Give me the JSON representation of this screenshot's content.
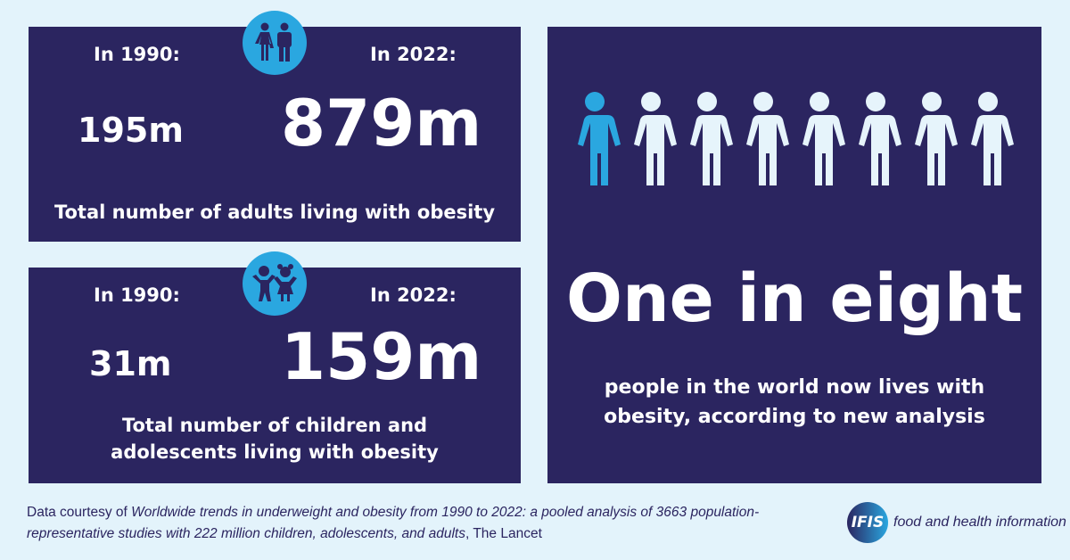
{
  "adults": {
    "label_1990": "In 1990:",
    "label_2022": "In 2022:",
    "value_1990": "195m",
    "value_2022": "879m",
    "caption": "Total number of adults living with obesity",
    "icon": "adults-icon"
  },
  "children": {
    "label_1990": "In 1990:",
    "label_2022": "In 2022:",
    "value_1990": "31m",
    "value_2022": "159m",
    "caption_line1": "Total number of children and",
    "caption_line2": "adolescents living with obesity",
    "icon": "children-icon"
  },
  "headline": {
    "title": "One in eight",
    "line1": "people in the world now lives with",
    "line2": "obesity, according to new analysis",
    "highlighted_count": 1,
    "total_count": 8
  },
  "footer": {
    "prefix": "Data courtesy of ",
    "title": "Worldwide trends in underweight and obesity from 1990 to 2022: a pooled analysis of 3663 population-representative studies with 222 million children, adolescents, and adults",
    "suffix": ", The Lancet"
  },
  "logo": {
    "mark": "IFIS",
    "tagline": "food and health information"
  },
  "colors": {
    "background": "#e3f3fb",
    "panel": "#2b2560",
    "accent": "#2aa7e0",
    "figure": "#e6f4fb"
  }
}
